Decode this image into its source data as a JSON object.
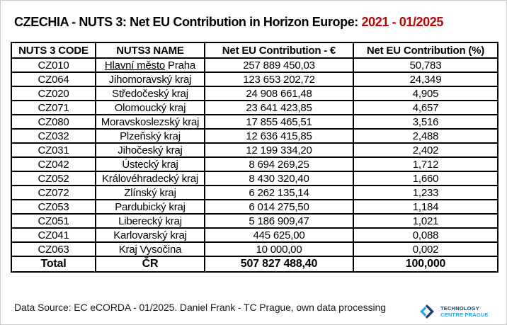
{
  "title": {
    "main": "CZECHIA - NUTS 3: Net EU Contribution in Horizon Europe: ",
    "period": "2021 - 01/2025",
    "period_color": "#c00000"
  },
  "table": {
    "headers": [
      "NUTS 3 CODE",
      "NUTS3 NAME",
      "Net EU Contribution - €",
      "Net EU Contribution (%)"
    ],
    "rows": [
      {
        "code": "CZ010",
        "name_underlined": "Hlavní město",
        "name_rest": "Praha",
        "eur": "257 889 450,03",
        "pct": "50,783"
      },
      {
        "code": "CZ064",
        "name_underlined": "",
        "name_rest": "Jihomoravský kraj",
        "eur": "123 653 202,72",
        "pct": "24,349"
      },
      {
        "code": "CZ020",
        "name_underlined": "",
        "name_rest": "Středočeský kraj",
        "eur": "24 908 661,48",
        "pct": "4,905"
      },
      {
        "code": "CZ071",
        "name_underlined": "",
        "name_rest": "Olomoucký kraj",
        "eur": "23 641 423,85",
        "pct": "4,657"
      },
      {
        "code": "CZ080",
        "name_underlined": "",
        "name_rest": "Moravskoslezský kraj",
        "eur": "17 855 465,51",
        "pct": "3,516"
      },
      {
        "code": "CZ032",
        "name_underlined": "",
        "name_rest": "Plzeňský kraj",
        "eur": "12 636 415,85",
        "pct": "2,488"
      },
      {
        "code": "CZ031",
        "name_underlined": "",
        "name_rest": "Jihočeský kraj",
        "eur": "12 199 334,20",
        "pct": "2,402"
      },
      {
        "code": "CZ042",
        "name_underlined": "",
        "name_rest": "Ústecký kraj",
        "eur": "8 694 269,25",
        "pct": "1,712"
      },
      {
        "code": "CZ052",
        "name_underlined": "",
        "name_rest": "Královéhradecký kraj",
        "eur": "8 430 320,40",
        "pct": "1,660"
      },
      {
        "code": "CZ072",
        "name_underlined": "",
        "name_rest": "Zlínský kraj",
        "eur": "6 262 135,14",
        "pct": "1,233"
      },
      {
        "code": "CZ053",
        "name_underlined": "",
        "name_rest": "Pardubický kraj",
        "eur": "6 014 275,50",
        "pct": "1,184"
      },
      {
        "code": "CZ051",
        "name_underlined": "",
        "name_rest": "Liberecký kraj",
        "eur": "5 186 909,47",
        "pct": "1,021"
      },
      {
        "code": "CZ041",
        "name_underlined": "",
        "name_rest": "Karlovarský kraj",
        "eur": "445 625,00",
        "pct": "0,088"
      },
      {
        "code": "CZ063",
        "name_underlined": "",
        "name_rest": "Kraj Vysočina",
        "eur": "10 000,00",
        "pct": "0,002"
      }
    ],
    "total": {
      "code": "Total",
      "name": "ČR",
      "eur": "507 827 488,40",
      "pct": "100,000"
    }
  },
  "footer": {
    "text": "Data Source: EC eCORDA - 01/2025. Daniel Frank - TC Prague, own data processing"
  },
  "logo": {
    "line1": "TECHNOLOGY",
    "line2": "CENTRE PRAGUE",
    "light_blue": "#2aa9e0",
    "navy": "#1c3c6e"
  }
}
